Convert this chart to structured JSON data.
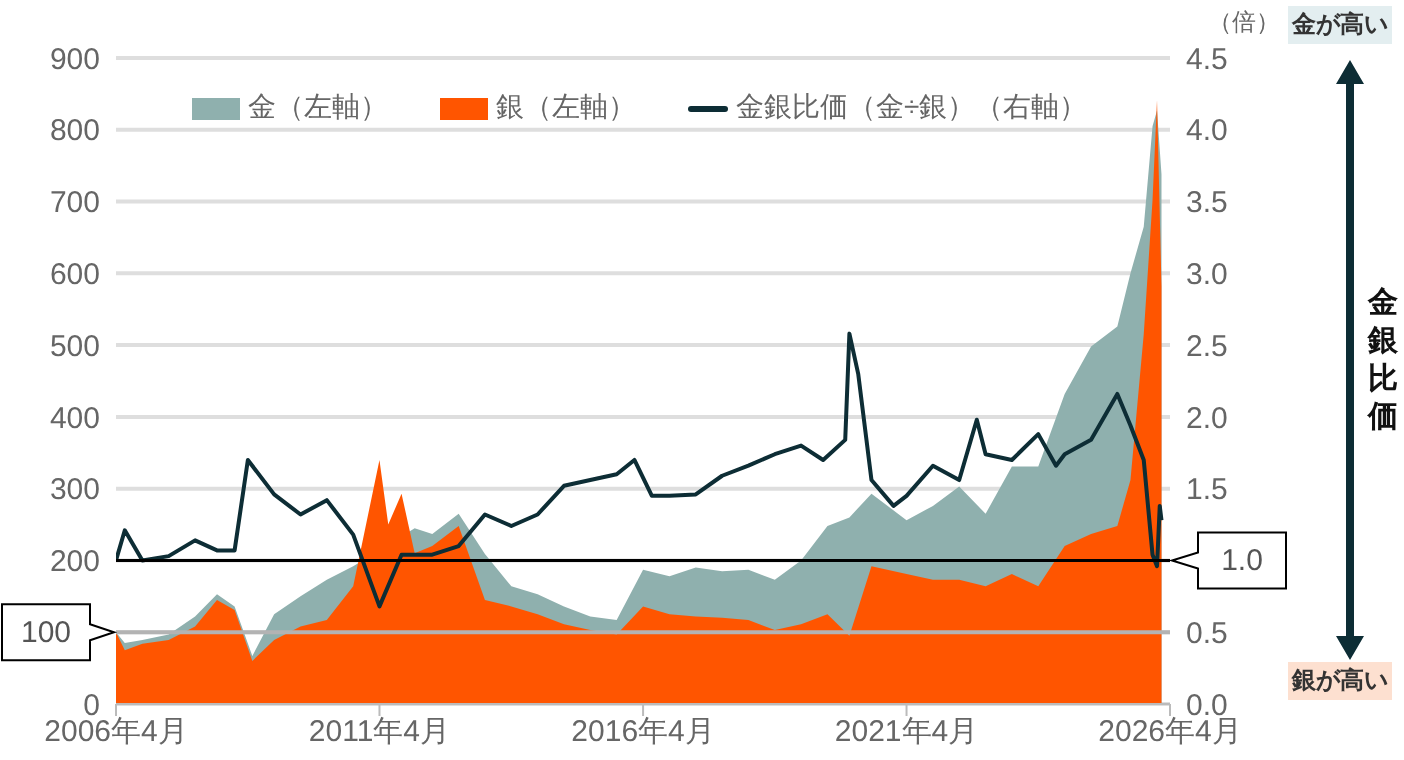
{
  "chart_data": {
    "type": "area",
    "y2label": "（倍）",
    "x": [
      "2006-04",
      "2006-06",
      "2006-10",
      "2007-04",
      "2007-10",
      "2008-03",
      "2008-07",
      "2008-11",
      "2009-04",
      "2009-10",
      "2010-04",
      "2010-10",
      "2011-04",
      "2011-06",
      "2011-09",
      "2011-12",
      "2012-04",
      "2012-10",
      "2013-04",
      "2013-10",
      "2014-04",
      "2014-10",
      "2015-04",
      "2015-10",
      "2016-04",
      "2016-10",
      "2017-04",
      "2017-10",
      "2018-04",
      "2018-10",
      "2019-04",
      "2019-10",
      "2020-03",
      "2020-08",
      "2021-04",
      "2021-10",
      "2022-04",
      "2022-10",
      "2023-04",
      "2023-10",
      "2024-04",
      "2024-10",
      "2025-04",
      "2025-07",
      "2025-10",
      "2025-12",
      "2026-01",
      "2026-02"
    ],
    "series": [
      {
        "name": "金（左軸）",
        "color": "#8fb0ae",
        "values": [
          100,
          85,
          89,
          97,
          122,
          153,
          136,
          67,
          125,
          150,
          173,
          192,
          null,
          null,
          null,
          245,
          237,
          265,
          209,
          164,
          153,
          136,
          122,
          117,
          187,
          178,
          190,
          185,
          187,
          173,
          200,
          248,
          260,
          293,
          256,
          276,
          303,
          265,
          331,
          331,
          432,
          498,
          526,
          600,
          665,
          805,
          827,
          738
        ]
      },
      {
        "name": "銀（左軸）",
        "color": "#ff5500",
        "values": [
          100,
          75,
          84,
          89,
          108,
          145,
          131,
          60,
          89,
          108,
          117,
          164,
          340,
          250,
          293,
          210,
          220,
          248,
          145,
          136,
          125,
          111,
          103,
          97,
          136,
          125,
          122,
          120,
          117,
          103,
          111,
          125,
          95,
          192,
          181,
          173,
          173,
          164,
          181,
          164,
          220,
          237,
          248,
          312,
          515,
          702,
          841,
          582
        ]
      },
      {
        "name": "金銀比価（金÷銀）（右軸）",
        "type": "line",
        "axis": "y2",
        "color": "#0d2d35",
        "x": [
          "2006-04",
          "2006-06",
          "2006-10",
          "2007-04",
          "2007-10",
          "2008-03",
          "2008-07",
          "2008-10",
          "2009-04",
          "2009-10",
          "2010-04",
          "2010-10",
          "2011-04",
          "2011-09",
          "2012-04",
          "2012-10",
          "2013-04",
          "2013-10",
          "2014-04",
          "2014-10",
          "2015-04",
          "2015-10",
          "2016-02",
          "2016-06",
          "2016-10",
          "2017-04",
          "2017-10",
          "2018-04",
          "2018-10",
          "2019-04",
          "2019-09",
          "2020-02",
          "2020-03",
          "2020-05",
          "2020-08",
          "2021-01",
          "2021-04",
          "2021-10",
          "2022-04",
          "2022-08",
          "2022-10",
          "2023-04",
          "2023-10",
          "2024-02",
          "2024-04",
          "2024-10",
          "2025-04",
          "2025-07",
          "2025-10",
          "2025-12",
          "2026-01",
          "2026-01-20",
          "2026-02"
        ],
        "values": [
          1.0,
          1.21,
          1.0,
          1.03,
          1.14,
          1.07,
          1.07,
          1.7,
          1.46,
          1.32,
          1.42,
          1.18,
          0.68,
          1.04,
          1.04,
          1.1,
          1.32,
          1.24,
          1.32,
          1.52,
          1.56,
          1.6,
          1.7,
          1.45,
          1.45,
          1.46,
          1.59,
          1.66,
          1.74,
          1.8,
          1.7,
          1.84,
          2.58,
          2.3,
          1.56,
          1.38,
          1.45,
          1.66,
          1.56,
          1.98,
          1.74,
          1.7,
          1.88,
          1.66,
          1.74,
          1.84,
          2.16,
          1.94,
          1.7,
          1.04,
          0.96,
          1.38,
          1.28
        ]
      }
    ],
    "xlim": [
      "2006-04",
      "2026-04"
    ],
    "xticks": [
      {
        "value": "2006-04",
        "label": "2006年4月"
      },
      {
        "value": "2011-04",
        "label": "2011年4月"
      },
      {
        "value": "2016-04",
        "label": "2016年4月"
      },
      {
        "value": "2021-04",
        "label": "2021年4月"
      },
      {
        "value": "2026-04",
        "label": "2026年4月"
      }
    ],
    "ylim": [
      0,
      900
    ],
    "yticks": [
      0,
      {
        "value": 100,
        "label": null
      },
      200,
      300,
      400,
      500,
      600,
      700,
      800,
      900
    ],
    "y2lim": [
      0,
      4.5
    ],
    "y2ticks": [
      {
        "value": 0,
        "label": "0.0"
      },
      0.5,
      {
        "value": 1,
        "label": null
      },
      1.5,
      {
        "value": 2,
        "label": "2.0"
      },
      2.5,
      {
        "value": 3,
        "label": "3.0"
      },
      3.5,
      {
        "value": 4,
        "label": "4.0"
      },
      4.5
    ],
    "ref_lines": [
      {
        "axis": "y",
        "value": 100,
        "label": "100",
        "color": "#b3b3b3"
      },
      {
        "axis": "y2",
        "value": 1,
        "label": "1.0",
        "color": "#000000"
      }
    ],
    "annotations": [
      "金が高い",
      "金銀比価",
      "銀が高い"
    ],
    "grid": "y",
    "legend": "top",
    "marker": "none"
  }
}
